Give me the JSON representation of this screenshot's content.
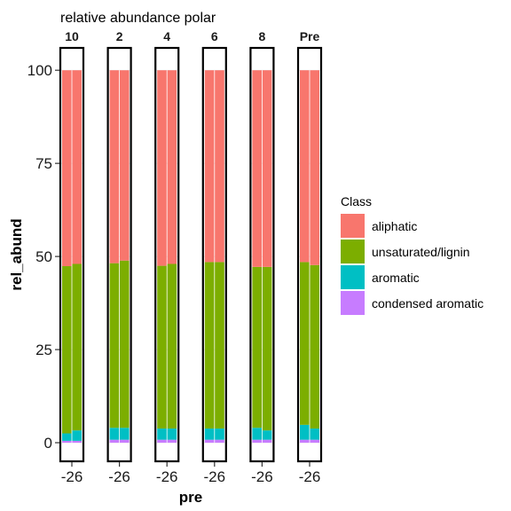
{
  "chart_data": {
    "type": "bar",
    "stacked": true,
    "faceted": true,
    "title": "relative abundance polar",
    "xlabel": "pre",
    "ylabel": "rel_abund",
    "ylim": [
      -5,
      106
    ],
    "yticks": [
      0,
      25,
      50,
      75,
      100
    ],
    "x_tick_label": "-26",
    "facets": [
      "10",
      "2",
      "4",
      "6",
      "8",
      "Pre"
    ],
    "legend": {
      "title": "Class",
      "position": "right"
    },
    "classes": [
      {
        "name": "aliphatic",
        "color": "#F8766D"
      },
      {
        "name": "unsaturated/lignin",
        "color": "#7CAE00"
      },
      {
        "name": "aromatic",
        "color": "#00BFC4"
      },
      {
        "name": "condensed aromatic",
        "color": "#C77CFF"
      }
    ],
    "series_order_bottom_to_top": [
      "condensed aromatic",
      "aromatic",
      "unsaturated/lignin",
      "aliphatic"
    ],
    "panels": [
      {
        "facet": "10",
        "bars": [
          {
            "condensed aromatic": 0.5,
            "aromatic": 2.0,
            "unsaturated/lignin": 44.9,
            "aliphatic": 52.6
          },
          {
            "condensed aromatic": 0.5,
            "aromatic": 2.8,
            "unsaturated/lignin": 44.7,
            "aliphatic": 52.0
          }
        ]
      },
      {
        "facet": "2",
        "bars": [
          {
            "condensed aromatic": 0.8,
            "aromatic": 3.2,
            "unsaturated/lignin": 44.2,
            "aliphatic": 51.8
          },
          {
            "condensed aromatic": 0.8,
            "aromatic": 3.2,
            "unsaturated/lignin": 44.9,
            "aliphatic": 51.1
          }
        ]
      },
      {
        "facet": "4",
        "bars": [
          {
            "condensed aromatic": 0.8,
            "aromatic": 3.0,
            "unsaturated/lignin": 43.7,
            "aliphatic": 52.5
          },
          {
            "condensed aromatic": 0.8,
            "aromatic": 3.0,
            "unsaturated/lignin": 44.2,
            "aliphatic": 52.0
          }
        ]
      },
      {
        "facet": "6",
        "bars": [
          {
            "condensed aromatic": 0.8,
            "aromatic": 3.0,
            "unsaturated/lignin": 44.7,
            "aliphatic": 51.5
          },
          {
            "condensed aromatic": 0.8,
            "aromatic": 3.0,
            "unsaturated/lignin": 44.7,
            "aliphatic": 51.5
          }
        ]
      },
      {
        "facet": "8",
        "bars": [
          {
            "condensed aromatic": 0.8,
            "aromatic": 3.2,
            "unsaturated/lignin": 43.2,
            "aliphatic": 52.8
          },
          {
            "condensed aromatic": 0.8,
            "aromatic": 2.5,
            "unsaturated/lignin": 43.9,
            "aliphatic": 52.8
          }
        ]
      },
      {
        "facet": "Pre",
        "bars": [
          {
            "condensed aromatic": 0.8,
            "aromatic": 4.0,
            "unsaturated/lignin": 43.7,
            "aliphatic": 51.5
          },
          {
            "condensed aromatic": 0.8,
            "aromatic": 3.0,
            "unsaturated/lignin": 43.9,
            "aliphatic": 52.3
          }
        ]
      }
    ]
  }
}
